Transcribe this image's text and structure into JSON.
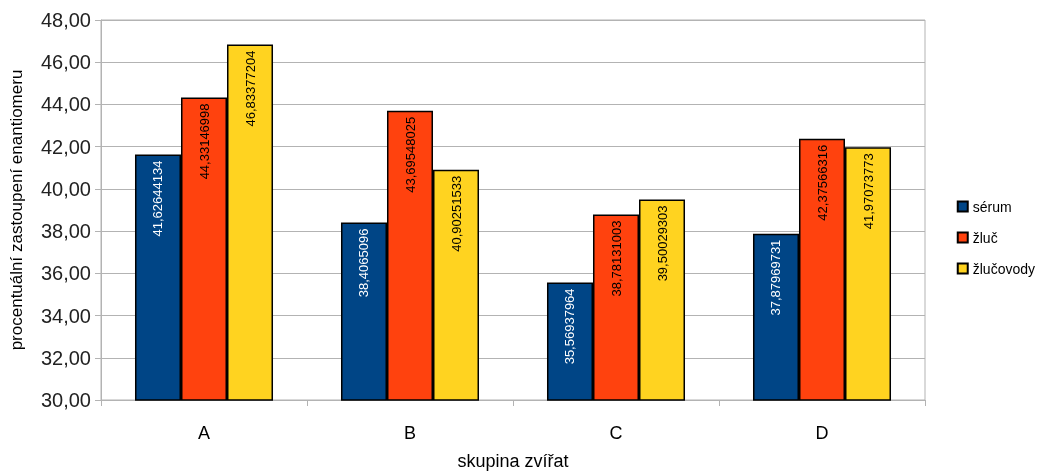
{
  "chart_data": {
    "type": "bar",
    "xlabel": "skupina zvířat",
    "ylabel": "procentuální zastoupení enantiomeru",
    "categories": [
      "A",
      "B",
      "C",
      "D"
    ],
    "series": [
      {
        "name": "sérum",
        "color": "#004586",
        "values": [
          41.62644134,
          38.4065096,
          35.56937964,
          37.87969731
        ],
        "value_labels": [
          "41,62644134",
          "38,4065096",
          "35,56937964",
          "37,87969731"
        ]
      },
      {
        "name": "žluč",
        "color": "#ff420e",
        "values": [
          44.33146998,
          43.69548025,
          38.78131003,
          42.37566316
        ],
        "value_labels": [
          "44,33146998",
          "43,69548025",
          "38,78131003",
          "42,37566316"
        ]
      },
      {
        "name": "žlučovody",
        "color": "#ffd320",
        "values": [
          46.83377204,
          40.90251533,
          39.50029303,
          41.97073773
        ],
        "value_labels": [
          "46,83377204",
          "40,90251533",
          "39,50029303",
          "41,97073773"
        ]
      }
    ],
    "ylim": [
      30,
      48
    ],
    "yticks": [
      {
        "value": 30,
        "label": "30,00"
      },
      {
        "value": 32,
        "label": "32,00"
      },
      {
        "value": 34,
        "label": "34,00"
      },
      {
        "value": 36,
        "label": "36,00"
      },
      {
        "value": 38,
        "label": "38,00"
      },
      {
        "value": 40,
        "label": "40,00"
      },
      {
        "value": 42,
        "label": "42,00"
      },
      {
        "value": 44,
        "label": "44,00"
      },
      {
        "value": 46,
        "label": "46,00"
      },
      {
        "value": 48,
        "label": "48,00"
      }
    ],
    "grid": "y",
    "legend": "right"
  }
}
